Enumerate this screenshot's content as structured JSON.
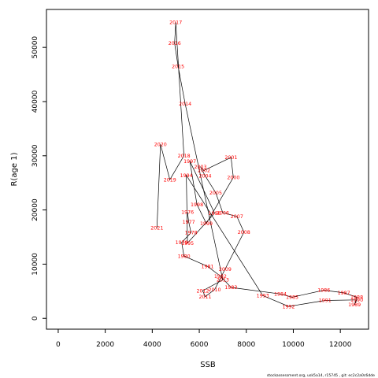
{
  "chart_data": {
    "type": "line",
    "title": "",
    "xlabel": "SSB",
    "ylabel": "R(age 1)",
    "xlim": [
      -500,
      13200
    ],
    "ylim": [
      -2000,
      57000
    ],
    "x_ticks": [
      0,
      2000,
      4000,
      6000,
      8000,
      10000,
      12000
    ],
    "x_tick_labels": [
      "0",
      "2000",
      "4000",
      "6000",
      "8000",
      "10000",
      "12000"
    ],
    "y_ticks": [
      0,
      10000,
      20000,
      30000,
      40000,
      50000
    ],
    "y_tick_labels": [
      "0",
      "10000",
      "20000",
      "30000",
      "40000",
      "50000"
    ],
    "grid": false,
    "line_color": "#000000",
    "label_color": "#ff0000",
    "points": [
      {
        "year": "1976",
        "ssb": 5500,
        "r": 19600
      },
      {
        "year": "1977",
        "ssb": 5550,
        "r": 17800
      },
      {
        "year": "1978",
        "ssb": 5650,
        "r": 15800
      },
      {
        "year": "1979",
        "ssb": 5250,
        "r": 14000
      },
      {
        "year": "1980",
        "ssb": 5350,
        "r": 11500
      },
      {
        "year": "1981",
        "ssb": 6350,
        "r": 9600
      },
      {
        "year": "1982",
        "ssb": 6900,
        "r": 7800
      },
      {
        "year": "1983",
        "ssb": 7350,
        "r": 5700
      },
      {
        "year": "1984",
        "ssb": 9450,
        "r": 4500
      },
      {
        "year": "1985",
        "ssb": 9950,
        "r": 3900
      },
      {
        "year": "1986",
        "ssb": 11300,
        "r": 5200
      },
      {
        "year": "1987",
        "ssb": 12150,
        "r": 4700
      },
      {
        "year": "1988",
        "ssb": 12700,
        "r": 3900
      },
      {
        "year": "1989",
        "ssb": 12600,
        "r": 2500
      },
      {
        "year": "1990",
        "ssb": 12700,
        "r": 3400
      },
      {
        "year": "1991",
        "ssb": 11350,
        "r": 3300
      },
      {
        "year": "1992",
        "ssb": 9800,
        "r": 2200
      },
      {
        "year": "1993",
        "ssb": 8700,
        "r": 4200
      },
      {
        "year": "1994",
        "ssb": 5450,
        "r": 26400
      },
      {
        "year": "1995",
        "ssb": 5500,
        "r": 13900
      },
      {
        "year": "1996",
        "ssb": 6650,
        "r": 19400
      },
      {
        "year": "1997",
        "ssb": 5600,
        "r": 29000
      },
      {
        "year": "1998",
        "ssb": 5900,
        "r": 21000
      },
      {
        "year": "1999",
        "ssb": 6300,
        "r": 17500
      },
      {
        "year": "2000",
        "ssb": 7450,
        "r": 26000
      },
      {
        "year": "2001",
        "ssb": 7350,
        "r": 29700
      },
      {
        "year": "2002",
        "ssb": 6200,
        "r": 27300
      },
      {
        "year": "2003",
        "ssb": 6050,
        "r": 28000
      },
      {
        "year": "2004",
        "ssb": 6250,
        "r": 26300
      },
      {
        "year": "2005",
        "ssb": 6700,
        "r": 23200
      },
      {
        "year": "2006",
        "ssb": 7000,
        "r": 19500
      },
      {
        "year": "2007",
        "ssb": 7600,
        "r": 18800
      },
      {
        "year": "2008",
        "ssb": 7900,
        "r": 15900
      },
      {
        "year": "2009",
        "ssb": 7100,
        "r": 9100
      },
      {
        "year": "2010",
        "ssb": 6650,
        "r": 5300
      },
      {
        "year": "2011",
        "ssb": 6250,
        "r": 4000
      },
      {
        "year": "2012",
        "ssb": 6150,
        "r": 5100
      },
      {
        "year": "2013",
        "ssb": 7000,
        "r": 7100
      },
      {
        "year": "2014",
        "ssb": 5400,
        "r": 39600
      },
      {
        "year": "2015",
        "ssb": 5100,
        "r": 46500
      },
      {
        "year": "2016",
        "ssb": 4950,
        "r": 50800
      },
      {
        "year": "2017",
        "ssb": 5000,
        "r": 54600
      },
      {
        "year": "2018",
        "ssb": 5350,
        "r": 30000
      },
      {
        "year": "2019",
        "ssb": 4750,
        "r": 25600
      },
      {
        "year": "2020",
        "ssb": 4350,
        "r": 32100
      },
      {
        "year": "2021",
        "ssb": 4200,
        "r": 16700
      }
    ]
  },
  "footer": {
    "note": "stockassessment.org, usk5a14, r15745 , git: ec2c2a0c6dde"
  }
}
